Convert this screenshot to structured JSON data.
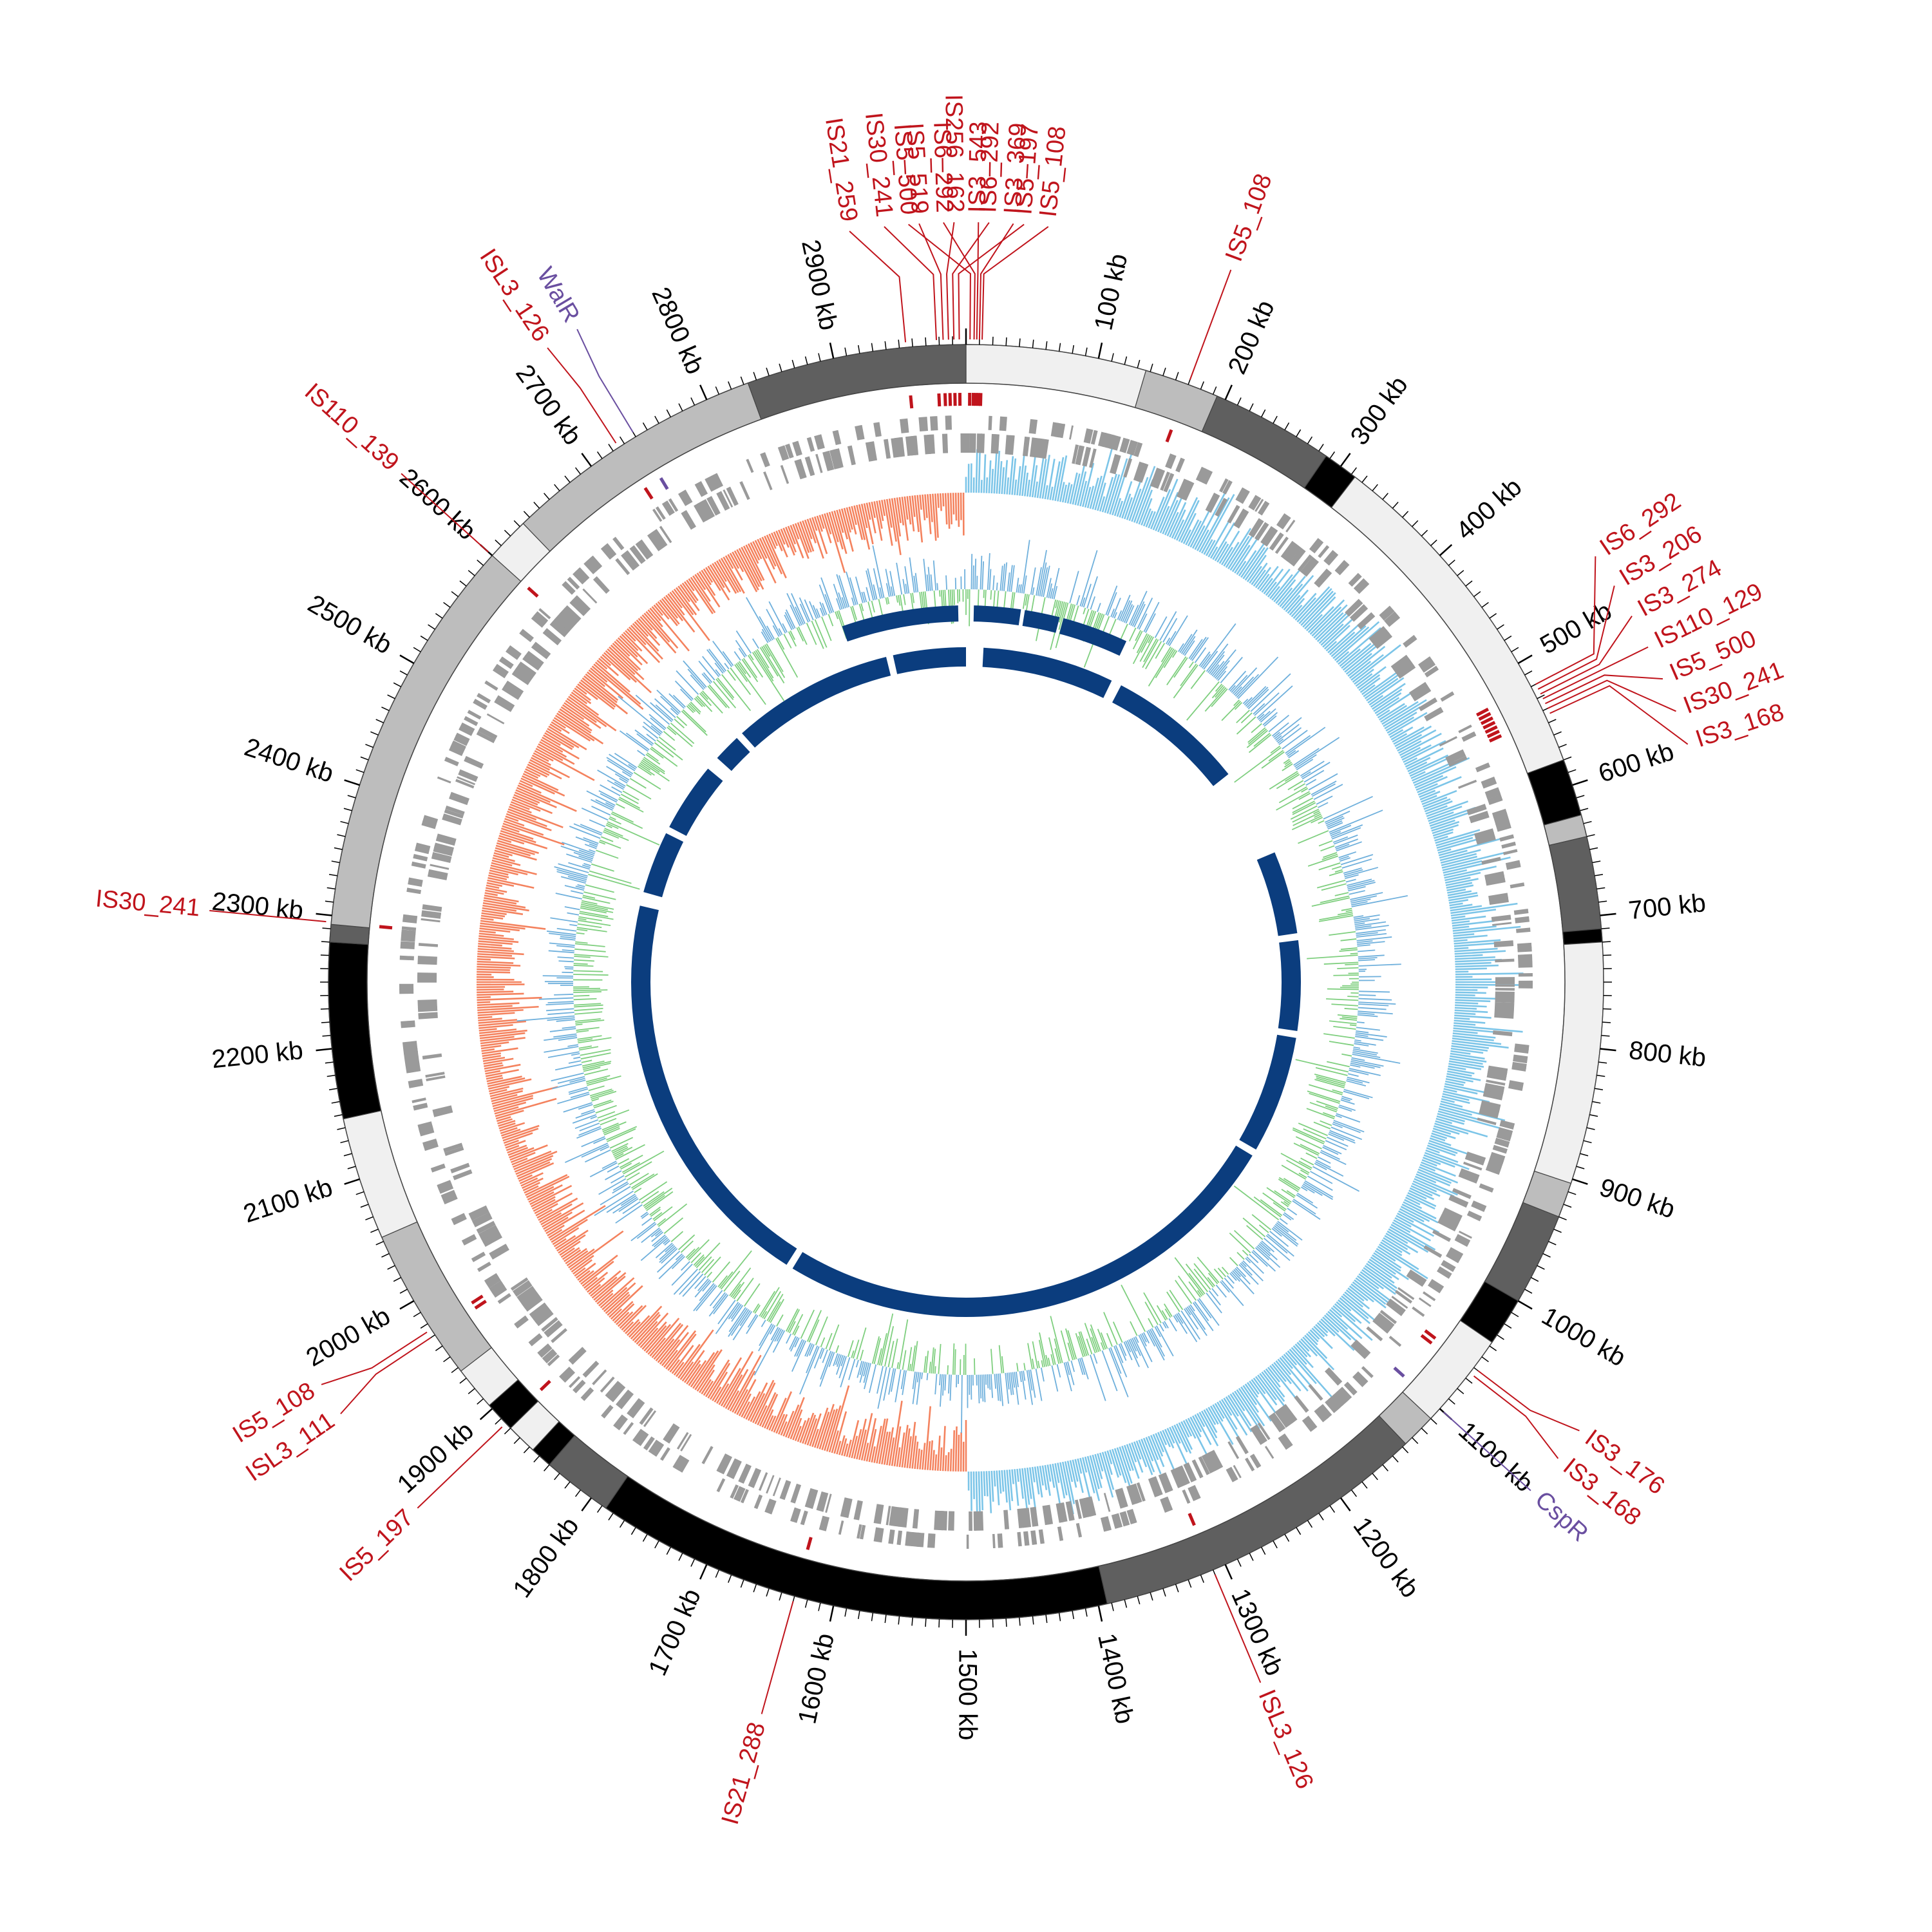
{
  "genome": {
    "length_kb": 3000,
    "ticks": [
      {
        "kb": 100,
        "label": "100 kb"
      },
      {
        "kb": 200,
        "label": "200 kb"
      },
      {
        "kb": 300,
        "label": "300 kb"
      },
      {
        "kb": 400,
        "label": "400 kb"
      },
      {
        "kb": 500,
        "label": "500 kb"
      },
      {
        "kb": 600,
        "label": "600 kb"
      },
      {
        "kb": 700,
        "label": "700 kb"
      },
      {
        "kb": 800,
        "label": "800 kb"
      },
      {
        "kb": 900,
        "label": "900 kb"
      },
      {
        "kb": 1000,
        "label": "1000 kb"
      },
      {
        "kb": 1100,
        "label": "1100 kb"
      },
      {
        "kb": 1200,
        "label": "1200 kb"
      },
      {
        "kb": 1300,
        "label": "1300 kb"
      },
      {
        "kb": 1400,
        "label": "1400 kb"
      },
      {
        "kb": 1500,
        "label": "1500 kb"
      },
      {
        "kb": 1600,
        "label": "1600 kb"
      },
      {
        "kb": 1700,
        "label": "1700 kb"
      },
      {
        "kb": 1800,
        "label": "1800 kb"
      },
      {
        "kb": 1900,
        "label": "1900 kb"
      },
      {
        "kb": 2000,
        "label": "2000 kb"
      },
      {
        "kb": 2100,
        "label": "2100 kb"
      },
      {
        "kb": 2200,
        "label": "2200 kb"
      },
      {
        "kb": 2300,
        "label": "2300 kb"
      },
      {
        "kb": 2400,
        "label": "2400 kb"
      },
      {
        "kb": 2500,
        "label": "2500 kb"
      },
      {
        "kb": 2600,
        "label": "2600 kb"
      },
      {
        "kb": 2700,
        "label": "2700 kb"
      },
      {
        "kb": 2800,
        "label": "2800 kb"
      },
      {
        "kb": 2900,
        "label": "2900 kb"
      }
    ],
    "colors": {
      "is_label": "#c0141c",
      "gene_label": "#6a4fa0",
      "gc_skew_pos": "#7cc5e8",
      "gc_skew_neg": "#f4825e",
      "gc_content_blue": "#6fb0dc",
      "gc_content_green": "#7fcf7f",
      "inner_blocks": "#0b3d7e",
      "genes": "#9a9a9a"
    }
  },
  "outer_segments": [
    {
      "start": 0,
      "end": 205,
      "color": "#f0f0f0"
    },
    {
      "start": 205,
      "end": 290,
      "color": "#bdbdbd"
    },
    {
      "start": 290,
      "end": 430,
      "color": "#5f5f5f"
    },
    {
      "start": 430,
      "end": 470,
      "color": "#000000"
    },
    {
      "start": 470,
      "end": 870,
      "color": "#f0f0f0"
    },
    {
      "start": 870,
      "end": 935,
      "color": "#000000"
    },
    {
      "start": 935,
      "end": 960,
      "color": "#bdbdbd"
    },
    {
      "start": 960,
      "end": 1065,
      "color": "#5f5f5f"
    },
    {
      "start": 1065,
      "end": 1080,
      "color": "#000000"
    },
    {
      "start": 1080,
      "end": 1355,
      "color": "#f0f0f0"
    },
    {
      "start": 1355,
      "end": 1395,
      "color": "#bdbdbd"
    },
    {
      "start": 1395,
      "end": 1500,
      "color": "#5f5f5f"
    },
    {
      "start": 1500,
      "end": 1555,
      "color": "#000000"
    },
    {
      "start": 1555,
      "end": 1665,
      "color": "#f0f0f0"
    },
    {
      "start": 1665,
      "end": 1705,
      "color": "#bdbdbd"
    },
    {
      "start": 1705,
      "end": 2090,
      "color": "#5f5f5f"
    },
    {
      "start": 2090,
      "end": 2680,
      "color": "#000000"
    },
    {
      "start": 2680,
      "end": 2760,
      "color": "#5f5f5f"
    },
    {
      "start": 2760,
      "end": 2785,
      "color": "#000000"
    },
    {
      "start": 2785,
      "end": 2820,
      "color": "#f0f0f0"
    },
    {
      "start": 2820,
      "end": 2855,
      "color": "#000000"
    },
    {
      "start": 2855,
      "end": 2905,
      "color": "#f0f0f0"
    },
    {
      "start": 2905,
      "end": 3080,
      "color": "#bdbdbd"
    },
    {
      "start": 3080,
      "end": 3220,
      "color": "#f0f0f0"
    },
    {
      "start": 3220,
      "end": 3420,
      "color": "#000000"
    },
    {
      "start": 3420,
      "end": 3440,
      "color": "#5f5f5f"
    },
    {
      "start": 3440,
      "end": 3900,
      "color": "#bdbdbd"
    },
    {
      "start": 3900,
      "end": 3950,
      "color": "#f0f0f0"
    },
    {
      "start": 3950,
      "end": 4250,
      "color": "#bdbdbd"
    },
    {
      "start": 4250,
      "end": 4500,
      "color": "#5f5f5f"
    }
  ],
  "inner_block_gaps": [
    {
      "start": 0,
      "end": 25
    },
    {
      "start": 215,
      "end": 230
    },
    {
      "start": 430,
      "end": 560
    },
    {
      "start": 680,
      "end": 690
    },
    {
      "start": 820,
      "end": 830
    },
    {
      "start": 1000,
      "end": 1010
    },
    {
      "start": 1760,
      "end": 1770
    },
    {
      "start": 2360,
      "end": 2380
    },
    {
      "start": 2470,
      "end": 2480
    },
    {
      "start": 2580,
      "end": 2600
    },
    {
      "start": 2640,
      "end": 2650
    },
    {
      "start": 2885,
      "end": 2895
    }
  ],
  "labels": [
    {
      "text": "IS21_259",
      "kb": 2955,
      "type": "is"
    },
    {
      "text": "IS30_241",
      "kb": 2978,
      "type": "is"
    },
    {
      "text": "IS5_519",
      "kb": 2983,
      "type": "is"
    },
    {
      "text": "IS256_162",
      "kb": 2987,
      "type": "is"
    },
    {
      "text": "IS6_292",
      "kb": 2991,
      "type": "is"
    },
    {
      "text": "IS5_197",
      "kb": 2995,
      "type": "is"
    },
    {
      "text": "IS5_500",
      "kb": 3,
      "type": "is"
    },
    {
      "text": "IS6_292",
      "kb": 6,
      "type": "is"
    },
    {
      "text": "IS3_543",
      "kb": 8,
      "type": "is"
    },
    {
      "text": "IS3_369",
      "kb": 10,
      "type": "is"
    },
    {
      "text": "IS5_108",
      "kb": 12,
      "type": "is"
    },
    {
      "text": "IS5_108",
      "kb": 170,
      "type": "is"
    },
    {
      "text": "IS6_292",
      "kb": 520,
      "type": "is"
    },
    {
      "text": "IS3_206",
      "kb": 524,
      "type": "is"
    },
    {
      "text": "IS3_274",
      "kb": 528,
      "type": "is"
    },
    {
      "text": "IS110_129",
      "kb": 532,
      "type": "is"
    },
    {
      "text": "IS5_500",
      "kb": 536,
      "type": "is"
    },
    {
      "text": "IS30_241",
      "kb": 540,
      "type": "is"
    },
    {
      "text": "IS3_168",
      "kb": 544,
      "type": "is"
    },
    {
      "text": "IS3_176",
      "kb": 1060,
      "type": "is"
    },
    {
      "text": "IS3_168",
      "kb": 1065,
      "type": "is"
    },
    {
      "text": "CspR",
      "kb": 1100,
      "type": "gene"
    },
    {
      "text": "ISL3_126",
      "kb": 1310,
      "type": "is"
    },
    {
      "text": "IS21_288",
      "kb": 1630,
      "type": "is"
    },
    {
      "text": "IS5_197",
      "kb": 1885,
      "type": "is"
    },
    {
      "text": "ISL3_111",
      "kb": 1970,
      "type": "is"
    },
    {
      "text": "IS5_108",
      "kb": 1975,
      "type": "is"
    },
    {
      "text": "IS30_241",
      "kb": 2295,
      "type": "is"
    },
    {
      "text": "IS110_139",
      "kb": 2600,
      "type": "is"
    },
    {
      "text": "ISL3_126",
      "kb": 2725,
      "type": "is"
    },
    {
      "text": "WalR",
      "kb": 2740,
      "type": "gene"
    }
  ]
}
